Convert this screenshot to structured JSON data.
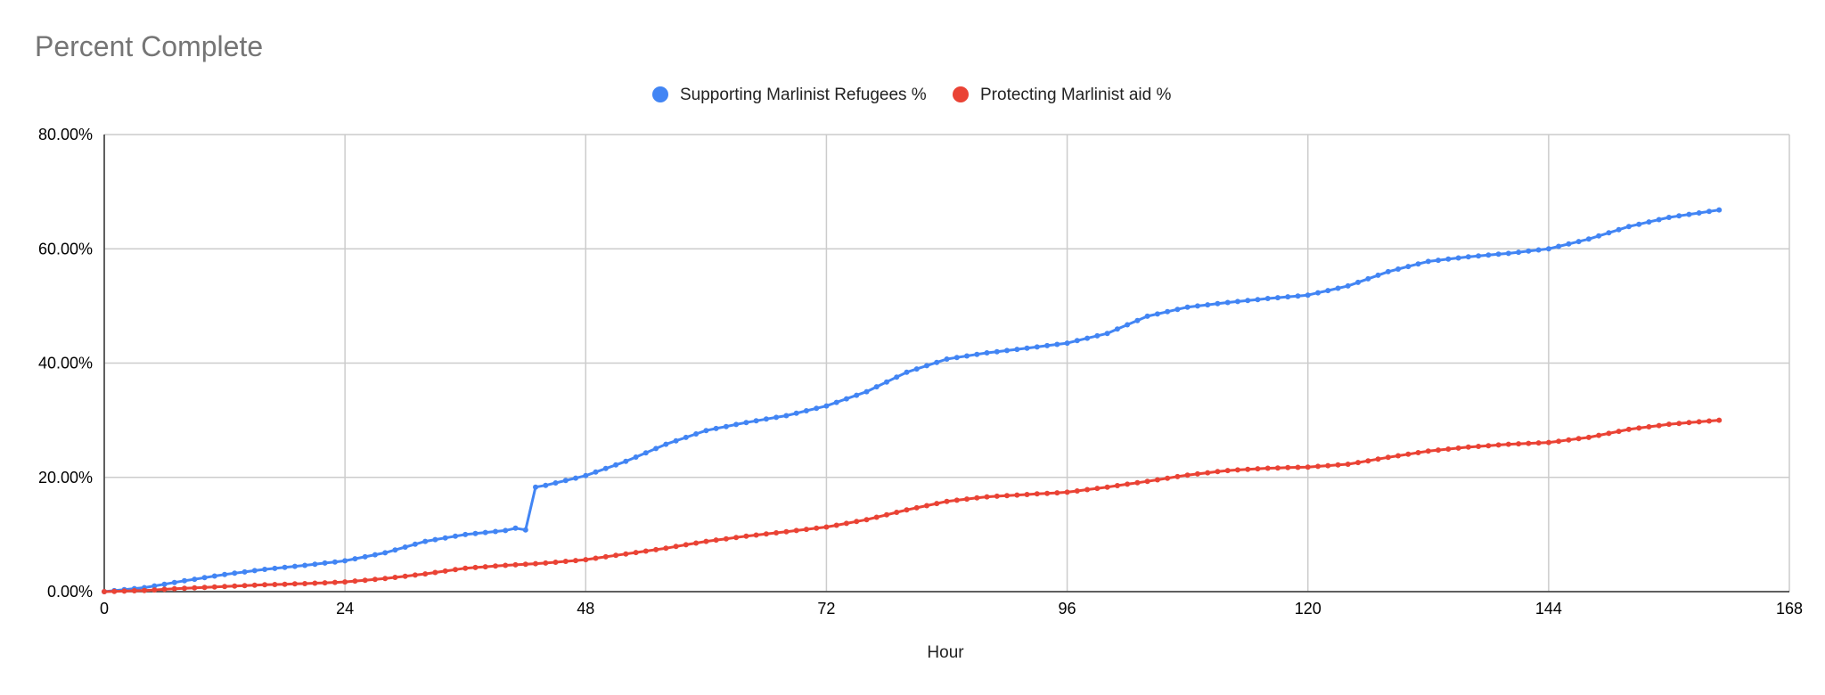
{
  "chart_data": {
    "type": "line",
    "title": "Percent Complete",
    "xlabel": "Hour",
    "ylabel": "",
    "xlim": [
      0,
      168
    ],
    "ylim": [
      0,
      80
    ],
    "x_ticks": [
      "0",
      "24",
      "48",
      "72",
      "96",
      "120",
      "144",
      "168"
    ],
    "y_ticks": [
      "0.00%",
      "20.00%",
      "40.00%",
      "60.00%",
      "80.00%"
    ],
    "grid": true,
    "legend_position": "top",
    "series": [
      {
        "name": "Supporting Marlinist Refugees %",
        "color": "#4285F4",
        "x": [
          0,
          4,
          8,
          12,
          16,
          20,
          24,
          28,
          32,
          36,
          40,
          41,
          42,
          43,
          44,
          48,
          52,
          56,
          60,
          64,
          68,
          72,
          76,
          80,
          84,
          88,
          92,
          96,
          100,
          104,
          108,
          112,
          116,
          120,
          124,
          128,
          132,
          136,
          140,
          144,
          148,
          152,
          156,
          161
        ],
        "y": [
          0,
          0.7,
          1.9,
          3.0,
          3.9,
          4.6,
          5.4,
          6.8,
          8.8,
          10.0,
          10.7,
          11.1,
          10.8,
          18.3,
          18.6,
          20.3,
          22.8,
          25.8,
          28.2,
          29.6,
          30.8,
          32.5,
          35.0,
          38.4,
          40.7,
          41.8,
          42.6,
          43.5,
          45.2,
          48.2,
          49.8,
          50.6,
          51.3,
          51.9,
          53.5,
          56.0,
          57.8,
          58.6,
          59.2,
          60.0,
          61.7,
          63.9,
          65.5,
          66.8
        ]
      },
      {
        "name": "Protecting Marlinist aid %",
        "color": "#EA4335",
        "x": [
          0,
          4,
          8,
          12,
          16,
          20,
          24,
          28,
          32,
          36,
          40,
          44,
          48,
          52,
          56,
          60,
          64,
          68,
          72,
          76,
          80,
          84,
          88,
          92,
          96,
          100,
          104,
          108,
          112,
          116,
          120,
          124,
          128,
          132,
          136,
          140,
          144,
          148,
          152,
          156,
          161
        ],
        "y": [
          0,
          0.2,
          0.6,
          0.9,
          1.2,
          1.4,
          1.7,
          2.3,
          3.1,
          4.1,
          4.6,
          5.0,
          5.6,
          6.6,
          7.6,
          8.8,
          9.7,
          10.5,
          11.3,
          12.6,
          14.3,
          15.8,
          16.6,
          17.0,
          17.4,
          18.3,
          19.3,
          20.4,
          21.2,
          21.6,
          21.8,
          22.3,
          23.5,
          24.6,
          25.3,
          25.8,
          26.1,
          27.0,
          28.4,
          29.3,
          30.0
        ]
      }
    ]
  }
}
